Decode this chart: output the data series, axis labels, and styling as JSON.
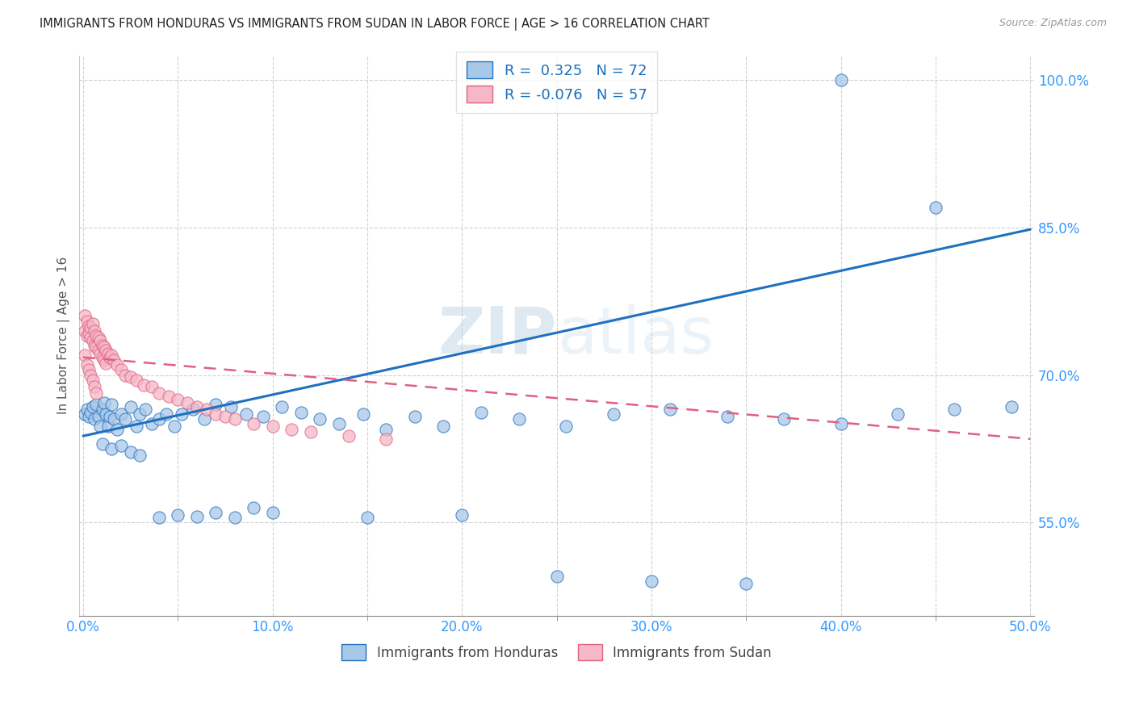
{
  "title": "IMMIGRANTS FROM HONDURAS VS IMMIGRANTS FROM SUDAN IN LABOR FORCE | AGE > 16 CORRELATION CHART",
  "source": "Source: ZipAtlas.com",
  "ylabel": "In Labor Force | Age > 16",
  "xlim": [
    -0.002,
    0.502
  ],
  "ylim": [
    0.455,
    1.025
  ],
  "ytick_labels": [
    "55.0%",
    "70.0%",
    "85.0%",
    "100.0%"
  ],
  "ytick_values": [
    0.55,
    0.7,
    0.85,
    1.0
  ],
  "xtick_labels": [
    "0.0%",
    "",
    "",
    "",
    "",
    "10.0%",
    "",
    "",
    "",
    "",
    "20.0%",
    "",
    "",
    "",
    "",
    "30.0%",
    "",
    "",
    "",
    "",
    "40.0%",
    "",
    "",
    "",
    "",
    "50.0%"
  ],
  "xtick_values": [
    0.0,
    0.02,
    0.04,
    0.06,
    0.08,
    0.1,
    0.12,
    0.14,
    0.16,
    0.18,
    0.2,
    0.22,
    0.24,
    0.26,
    0.28,
    0.3,
    0.32,
    0.34,
    0.36,
    0.38,
    0.4,
    0.42,
    0.44,
    0.46,
    0.48,
    0.5
  ],
  "legend_label1": "Immigrants from Honduras",
  "legend_label2": "Immigrants from Sudan",
  "r1": 0.325,
  "n1": 72,
  "r2": -0.076,
  "n2": 57,
  "color_honduras": "#a8c8e8",
  "color_sudan": "#f5b8c8",
  "line_color_honduras": "#2070c0",
  "line_color_sudan": "#e06080",
  "watermark_zip": "ZIP",
  "watermark_atlas": "atlas",
  "honduras_x": [
    0.001,
    0.002,
    0.003,
    0.004,
    0.005,
    0.006,
    0.007,
    0.008,
    0.009,
    0.01,
    0.011,
    0.012,
    0.013,
    0.014,
    0.015,
    0.016,
    0.018,
    0.02,
    0.022,
    0.025,
    0.028,
    0.03,
    0.033,
    0.036,
    0.04,
    0.044,
    0.048,
    0.052,
    0.058,
    0.064,
    0.07,
    0.078,
    0.086,
    0.095,
    0.105,
    0.115,
    0.125,
    0.135,
    0.148,
    0.16,
    0.175,
    0.19,
    0.21,
    0.23,
    0.255,
    0.28,
    0.31,
    0.34,
    0.37,
    0.4,
    0.43,
    0.46,
    0.49,
    0.01,
    0.015,
    0.02,
    0.025,
    0.03,
    0.04,
    0.05,
    0.06,
    0.07,
    0.08,
    0.09,
    0.1,
    0.15,
    0.2,
    0.25,
    0.3,
    0.35,
    0.4,
    0.45
  ],
  "honduras_y": [
    0.66,
    0.665,
    0.658,
    0.662,
    0.668,
    0.655,
    0.67,
    0.658,
    0.648,
    0.665,
    0.672,
    0.66,
    0.648,
    0.658,
    0.67,
    0.655,
    0.645,
    0.66,
    0.655,
    0.668,
    0.648,
    0.66,
    0.665,
    0.65,
    0.655,
    0.66,
    0.648,
    0.66,
    0.665,
    0.655,
    0.67,
    0.668,
    0.66,
    0.658,
    0.668,
    0.662,
    0.655,
    0.65,
    0.66,
    0.645,
    0.658,
    0.648,
    0.662,
    0.655,
    0.648,
    0.66,
    0.665,
    0.658,
    0.655,
    0.65,
    0.66,
    0.665,
    0.668,
    0.63,
    0.625,
    0.628,
    0.622,
    0.618,
    0.555,
    0.558,
    0.556,
    0.56,
    0.555,
    0.565,
    0.56,
    0.555,
    0.558,
    0.495,
    0.49,
    0.488,
    1.0,
    0.87
  ],
  "sudan_x": [
    0.001,
    0.001,
    0.002,
    0.002,
    0.003,
    0.003,
    0.004,
    0.004,
    0.005,
    0.005,
    0.006,
    0.006,
    0.007,
    0.007,
    0.008,
    0.008,
    0.009,
    0.009,
    0.01,
    0.01,
    0.011,
    0.011,
    0.012,
    0.012,
    0.013,
    0.014,
    0.015,
    0.016,
    0.018,
    0.02,
    0.022,
    0.025,
    0.028,
    0.032,
    0.036,
    0.04,
    0.045,
    0.05,
    0.055,
    0.06,
    0.065,
    0.07,
    0.075,
    0.08,
    0.09,
    0.1,
    0.11,
    0.12,
    0.14,
    0.16,
    0.001,
    0.002,
    0.003,
    0.004,
    0.005,
    0.006,
    0.007
  ],
  "sudan_y": [
    0.76,
    0.745,
    0.755,
    0.74,
    0.75,
    0.742,
    0.748,
    0.738,
    0.752,
    0.735,
    0.745,
    0.73,
    0.74,
    0.728,
    0.738,
    0.725,
    0.735,
    0.722,
    0.73,
    0.718,
    0.728,
    0.715,
    0.725,
    0.712,
    0.722,
    0.718,
    0.72,
    0.715,
    0.71,
    0.705,
    0.7,
    0.698,
    0.695,
    0.69,
    0.688,
    0.682,
    0.678,
    0.675,
    0.672,
    0.668,
    0.665,
    0.66,
    0.658,
    0.655,
    0.65,
    0.648,
    0.645,
    0.642,
    0.638,
    0.635,
    0.72,
    0.71,
    0.705,
    0.7,
    0.695,
    0.688,
    0.682
  ],
  "blue_line_x": [
    0.0,
    0.5
  ],
  "blue_line_y": [
    0.638,
    0.848
  ],
  "pink_line_x": [
    0.0,
    0.5
  ],
  "pink_line_y": [
    0.718,
    0.635
  ]
}
